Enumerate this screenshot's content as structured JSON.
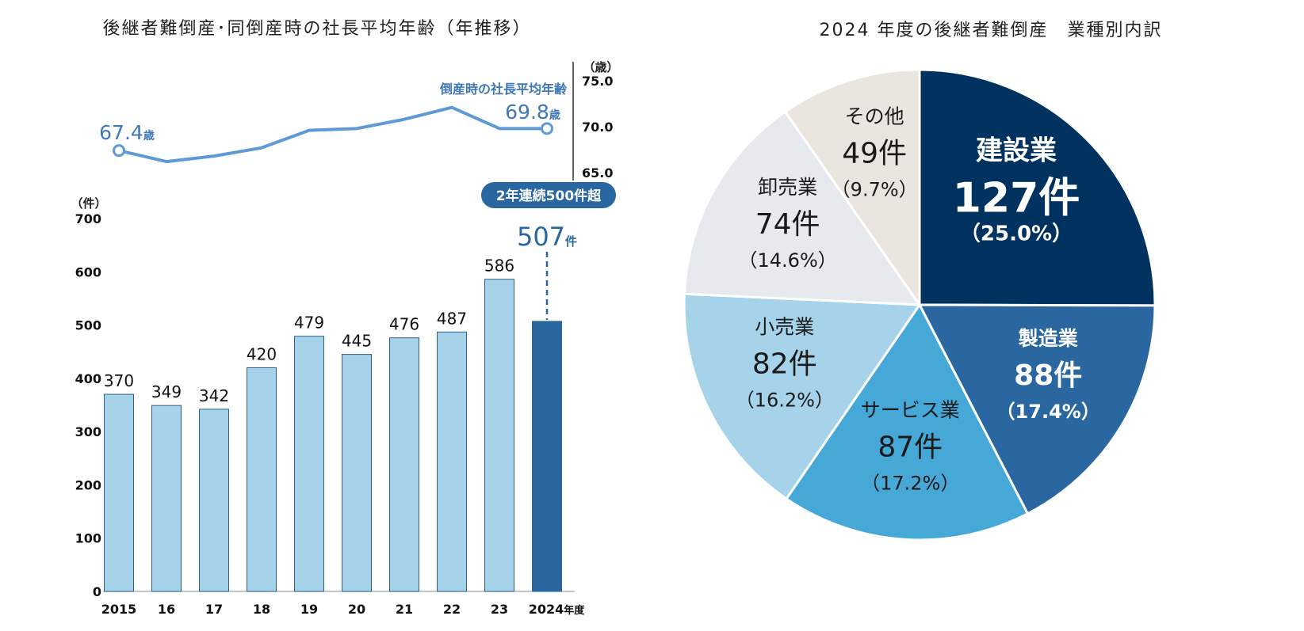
{
  "left_title": "後継者難倒産･同倒産時の社長平均年齢（年推移）",
  "right_title": "2024 年度の後継者難倒産　業種別内訳",
  "chart_data": [
    {
      "type": "bar",
      "title": "後継者難倒産･同倒産時の社長平均年齢（年推移）",
      "categories": [
        "2015",
        "16",
        "17",
        "18",
        "19",
        "20",
        "21",
        "22",
        "23",
        "2024"
      ],
      "x_suffix": "年度",
      "values": [
        370,
        349,
        342,
        420,
        479,
        445,
        476,
        487,
        586,
        507
      ],
      "data_labels": [
        "370",
        "349",
        "342",
        "420",
        "479",
        "445",
        "476",
        "487",
        "586",
        "507"
      ],
      "highlight_suffix": "件",
      "y_unit": "（件）",
      "ylim": [
        0,
        700
      ],
      "yticks": [
        "0",
        "100",
        "200",
        "300",
        "400",
        "500",
        "600",
        "700"
      ],
      "callout": "2年連続500件超",
      "colors": {
        "bar": "#a6d3e9",
        "highlight": "#2a67a0",
        "bar_stroke": "#2f5f8a"
      }
    },
    {
      "type": "line",
      "categories": [
        "2015",
        "16",
        "17",
        "18",
        "19",
        "20",
        "21",
        "22",
        "23",
        "2024"
      ],
      "values": [
        67.4,
        66.2,
        66.8,
        67.7,
        69.6,
        69.8,
        70.8,
        72.1,
        69.8,
        69.8
      ],
      "series_label": "倒産時の社長平均年齢",
      "start_label": "67.4",
      "end_label": "69.8",
      "unit": "歳",
      "y_unit": "（歳）",
      "ylim": [
        65,
        75
      ],
      "yticks": [
        "65.0",
        "70.0",
        "75.0"
      ],
      "colors": {
        "line": "#5f9ad4",
        "label": "#3f78b5"
      }
    },
    {
      "type": "pie",
      "title": "2024 年度の後継者難倒産　業種別内訳",
      "slices": [
        {
          "label": "建設業",
          "value": 127,
          "count": "127件",
          "pct": "（25.0%）",
          "color": "#003260",
          "text": "#ffffff"
        },
        {
          "label": "製造業",
          "value": 88,
          "count": "88件",
          "pct": "（17.4%）",
          "color": "#2a67a0",
          "text": "#ffffff"
        },
        {
          "label": "サービス業",
          "value": 87,
          "count": "87件",
          "pct": "（17.2%）",
          "color": "#45a8d6",
          "text": "#1a1a1a"
        },
        {
          "label": "小売業",
          "value": 82,
          "count": "82件",
          "pct": "（16.2%）",
          "color": "#a6d3e9",
          "text": "#1a1a1a"
        },
        {
          "label": "卸売業",
          "value": 74,
          "count": "74件",
          "pct": "（14.6%）",
          "color": "#e6e9ed",
          "text": "#1a1a1a"
        },
        {
          "label": "その他",
          "value": 49,
          "count": "49件",
          "pct": "（9.7%）",
          "color": "#ebe5e0",
          "text": "#1a1a1a"
        }
      ]
    }
  ]
}
